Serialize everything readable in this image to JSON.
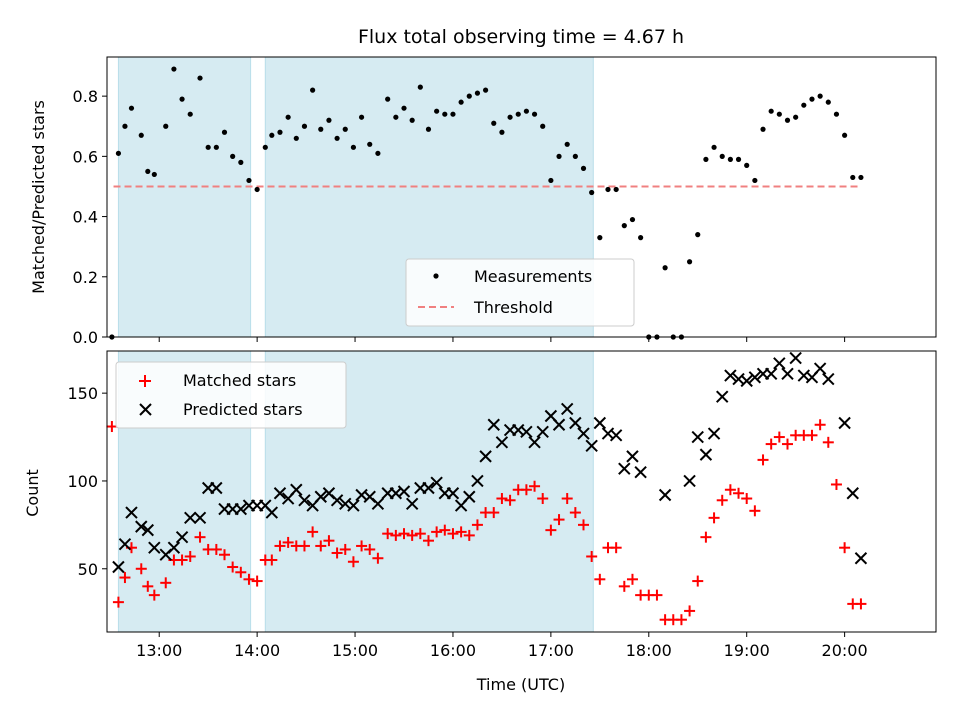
{
  "chart_data": [
    {
      "type": "scatter",
      "title": "Flux total observing time = 4.67 h",
      "xlabel": "",
      "ylabel": "Matched/Predicted stars",
      "xlim": [
        "12:28",
        "20:56"
      ],
      "ylim": [
        0,
        0.93
      ],
      "yticks": [
        "0.0",
        "0.2",
        "0.4",
        "0.6",
        "0.8"
      ],
      "ytick_values": [
        0,
        0.2,
        0.4,
        0.6,
        0.8
      ],
      "legend": {
        "placement": "lower center",
        "entries": [
          "Measurements",
          "Threshold"
        ]
      },
      "shaded_spans": [
        [
          "12:35",
          "13:56"
        ],
        [
          "14:05",
          "17:26"
        ]
      ],
      "threshold": {
        "name": "Threshold",
        "y": 0.5,
        "x_range": [
          "12:32",
          "20:10"
        ],
        "color": "#f08080"
      },
      "series": [
        {
          "name": "Measurements",
          "color": "#000000",
          "x": [
            "12:31",
            "12:35",
            "12:39",
            "12:43",
            "12:49",
            "12:53",
            "12:57",
            "13:04",
            "13:09",
            "13:14",
            "13:19",
            "13:25",
            "13:30",
            "13:35",
            "13:40",
            "13:45",
            "13:50",
            "13:55",
            "14:00",
            "14:05",
            "14:09",
            "14:14",
            "14:19",
            "14:24",
            "14:29",
            "14:34",
            "14:39",
            "14:44",
            "14:49",
            "14:54",
            "14:59",
            "15:04",
            "15:09",
            "15:14",
            "15:20",
            "15:25",
            "15:30",
            "15:35",
            "15:40",
            "15:45",
            "15:50",
            "15:55",
            "16:00",
            "16:05",
            "16:10",
            "16:15",
            "16:20",
            "16:25",
            "16:30",
            "16:35",
            "16:40",
            "16:45",
            "16:50",
            "16:55",
            "17:00",
            "17:05",
            "17:10",
            "17:15",
            "17:20",
            "17:25",
            "17:30",
            "17:35",
            "17:40",
            "17:45",
            "17:50",
            "17:55",
            "18:00",
            "18:05",
            "18:10",
            "18:15",
            "18:20",
            "18:25",
            "18:30",
            "18:35",
            "18:40",
            "18:45",
            "18:50",
            "18:55",
            "19:00",
            "19:05",
            "19:10",
            "19:15",
            "19:20",
            "19:25",
            "19:30",
            "19:35",
            "19:40",
            "19:45",
            "19:50",
            "19:55",
            "20:00",
            "20:05",
            "20:10"
          ],
          "y": [
            0.0,
            0.61,
            0.7,
            0.76,
            0.67,
            0.55,
            0.54,
            0.7,
            0.89,
            0.79,
            0.74,
            0.86,
            0.63,
            0.63,
            0.68,
            0.6,
            0.58,
            0.52,
            0.49,
            0.63,
            0.67,
            0.68,
            0.73,
            0.66,
            0.7,
            0.82,
            0.69,
            0.72,
            0.66,
            0.69,
            0.63,
            0.73,
            0.64,
            0.61,
            0.79,
            0.73,
            0.76,
            0.72,
            0.83,
            0.69,
            0.75,
            0.74,
            0.74,
            0.78,
            0.8,
            0.81,
            0.82,
            0.71,
            0.68,
            0.73,
            0.74,
            0.75,
            0.74,
            0.7,
            0.52,
            0.6,
            0.64,
            0.6,
            0.56,
            0.48,
            0.33,
            0.49,
            0.49,
            0.37,
            0.39,
            0.33,
            0.0,
            0.0,
            0.23,
            0.0,
            0.0,
            0.25,
            0.34,
            0.59,
            0.63,
            0.6,
            0.59,
            0.59,
            0.57,
            0.52,
            0.69,
            0.75,
            0.74,
            0.72,
            0.73,
            0.77,
            0.79,
            0.8,
            0.78,
            0.74,
            0.67,
            0.53,
            0.53
          ]
        }
      ]
    },
    {
      "type": "scatter",
      "title": "",
      "xlabel": "Time (UTC)",
      "ylabel": "Count",
      "xlim": [
        "12:28",
        "20:56"
      ],
      "ylim": [
        14,
        174
      ],
      "xticks": [
        "13:00",
        "14:00",
        "15:00",
        "16:00",
        "17:00",
        "18:00",
        "19:00",
        "20:00"
      ],
      "yticks": [
        "50",
        "100",
        "150"
      ],
      "ytick_values": [
        50,
        100,
        150
      ],
      "legend": {
        "placement": "upper left",
        "entries": [
          "Matched stars",
          "Predicted stars"
        ]
      },
      "shaded_spans": [
        [
          "12:35",
          "13:56"
        ],
        [
          "14:05",
          "17:26"
        ]
      ],
      "series": [
        {
          "name": "Matched stars",
          "marker": "plus",
          "color": "#ff0000",
          "x": [
            "12:31",
            "12:35",
            "12:39",
            "12:43",
            "12:49",
            "12:53",
            "12:57",
            "13:04",
            "13:09",
            "13:14",
            "13:19",
            "13:25",
            "13:30",
            "13:35",
            "13:40",
            "13:45",
            "13:50",
            "13:55",
            "14:00",
            "14:05",
            "14:09",
            "14:14",
            "14:19",
            "14:24",
            "14:29",
            "14:34",
            "14:39",
            "14:44",
            "14:49",
            "14:54",
            "14:59",
            "15:04",
            "15:09",
            "15:14",
            "15:20",
            "15:25",
            "15:30",
            "15:35",
            "15:40",
            "15:45",
            "15:50",
            "15:55",
            "16:00",
            "16:05",
            "16:10",
            "16:15",
            "16:20",
            "16:25",
            "16:30",
            "16:35",
            "16:40",
            "16:45",
            "16:50",
            "16:55",
            "17:00",
            "17:05",
            "17:10",
            "17:15",
            "17:20",
            "17:25",
            "17:30",
            "17:35",
            "17:40",
            "17:45",
            "17:50",
            "17:55",
            "18:00",
            "18:05",
            "18:10",
            "18:15",
            "18:20",
            "18:25",
            "18:30",
            "18:35",
            "18:40",
            "18:45",
            "18:50",
            "18:55",
            "19:00",
            "19:05",
            "19:10",
            "19:15",
            "19:20",
            "19:25",
            "19:30",
            "19:35",
            "19:40",
            "19:45",
            "19:50",
            "19:55",
            "20:00",
            "20:05",
            "20:10"
          ],
          "y": [
            131,
            31,
            45,
            62,
            50,
            40,
            35,
            42,
            55,
            55,
            57,
            68,
            61,
            61,
            58,
            51,
            48,
            44,
            43,
            55,
            55,
            63,
            65,
            63,
            63,
            71,
            63,
            66,
            59,
            61,
            54,
            63,
            61,
            56,
            70,
            69,
            70,
            69,
            70,
            66,
            71,
            72,
            70,
            71,
            69,
            75,
            82,
            82,
            90,
            89,
            95,
            95,
            97,
            90,
            72,
            78,
            90,
            82,
            75,
            57,
            44,
            62,
            62,
            40,
            44,
            35,
            35,
            35,
            21,
            21,
            21,
            26,
            43,
            68,
            79,
            89,
            95,
            93,
            90,
            83,
            112,
            121,
            125,
            121,
            126,
            126,
            126,
            132,
            122,
            98,
            62,
            30,
            30
          ]
        },
        {
          "name": "Predicted stars",
          "marker": "x",
          "color": "#000000",
          "x": [
            "12:31",
            "12:35",
            "12:39",
            "12:43",
            "12:49",
            "12:53",
            "12:57",
            "13:04",
            "13:09",
            "13:14",
            "13:19",
            "13:25",
            "13:30",
            "13:35",
            "13:40",
            "13:45",
            "13:50",
            "13:55",
            "14:00",
            "14:05",
            "14:09",
            "14:14",
            "14:19",
            "14:24",
            "14:29",
            "14:34",
            "14:39",
            "14:44",
            "14:49",
            "14:54",
            "14:59",
            "15:04",
            "15:09",
            "15:14",
            "15:20",
            "15:25",
            "15:30",
            "15:35",
            "15:40",
            "15:45",
            "15:50",
            "15:55",
            "16:00",
            "16:05",
            "16:10",
            "16:15",
            "16:20",
            "16:25",
            "16:30",
            "16:35",
            "16:40",
            "16:45",
            "16:50",
            "16:55",
            "17:00",
            "17:05",
            "17:10",
            "17:15",
            "17:20",
            "17:25",
            "17:30",
            "17:35",
            "17:40",
            "17:45",
            "17:50",
            "17:55",
            "18:00",
            "18:05",
            "18:10",
            "18:15",
            "18:20",
            "18:25",
            "18:30",
            "18:35",
            "18:40",
            "18:45",
            "18:50",
            "18:55",
            "19:00",
            "19:05",
            "19:10",
            "19:15",
            "19:20",
            "19:25",
            "19:30",
            "19:35",
            "19:40",
            "19:45",
            "19:50",
            "19:55",
            "20:00",
            "20:05",
            "20:10"
          ],
          "y": [
            null,
            51,
            64,
            82,
            74,
            72,
            62,
            58,
            62,
            68,
            79,
            79,
            96,
            96,
            84,
            84,
            84,
            86,
            86,
            86,
            82,
            93,
            90,
            95,
            89,
            86,
            91,
            93,
            89,
            87,
            86,
            92,
            91,
            87,
            93,
            93,
            94,
            87,
            96,
            96,
            99,
            93,
            93,
            86,
            91,
            100,
            114,
            132,
            122,
            129,
            129,
            128,
            122,
            128,
            137,
            132,
            141,
            133,
            127,
            120,
            133,
            127,
            126,
            107,
            114,
            105,
            null,
            null,
            92,
            null,
            null,
            100,
            125,
            115,
            127,
            148,
            160,
            158,
            157,
            159,
            161,
            161,
            167,
            161,
            170,
            160,
            159,
            164,
            158,
            null,
            133,
            93,
            56
          ]
        }
      ]
    }
  ]
}
